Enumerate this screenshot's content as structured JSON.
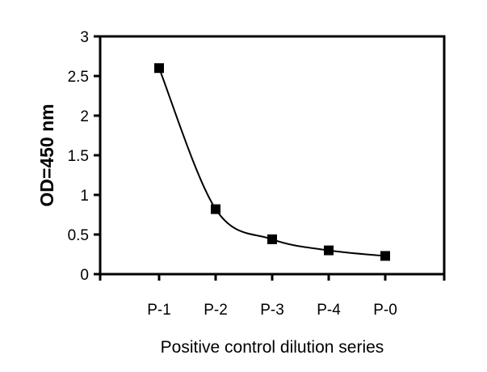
{
  "figure": {
    "background_color": "#ffffff",
    "foreground_color": "#000000"
  },
  "chart_data": {
    "type": "line",
    "title": "",
    "categories": [
      "P-1",
      "P-2",
      "P-3",
      "P-4",
      "P-0"
    ],
    "values": [
      2.6,
      0.82,
      0.44,
      0.3,
      0.23
    ],
    "xlabel": "Positive control dilution series",
    "ylabel": "OD=450 nm",
    "ylim": [
      0,
      3
    ],
    "ytick_values": [
      0,
      0.5,
      1,
      1.5,
      2,
      2.5,
      3
    ],
    "ytick_labels": [
      "0",
      "0.5",
      "1",
      "1.5",
      "2",
      "2.5",
      "3"
    ],
    "grid": false,
    "legend": false,
    "smooth": true,
    "line": {
      "color": "#000000",
      "width": 2
    },
    "marker": {
      "shape": "square",
      "color": "#000000",
      "size": 12
    },
    "frame": {
      "color": "#000000",
      "width": 3
    },
    "tick": {
      "color": "#000000",
      "width": 3,
      "length": 8
    }
  }
}
